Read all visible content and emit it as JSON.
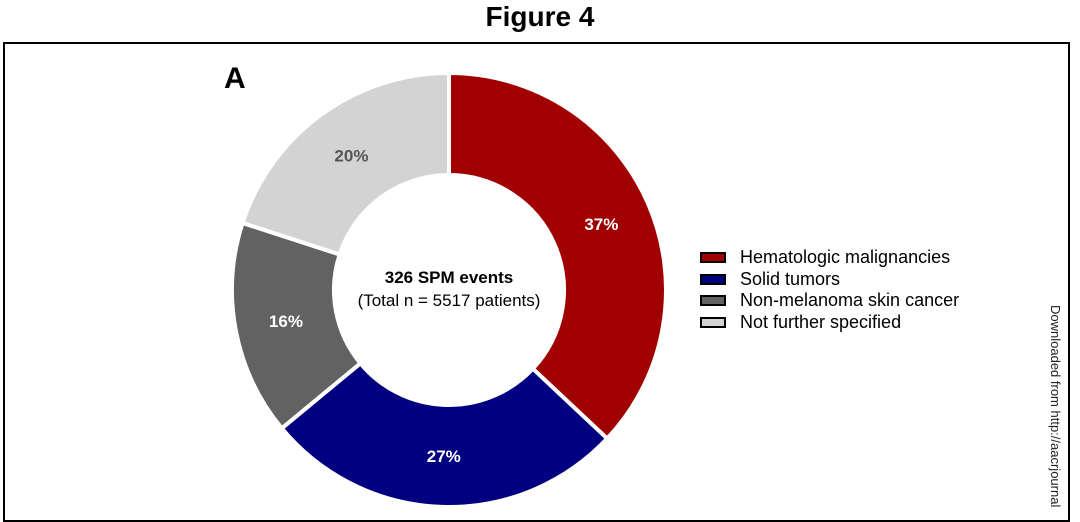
{
  "title": "Figure 4",
  "panel_label": "A",
  "side_note": "Downloaded from http://aacrjournal",
  "chart_data": {
    "type": "pie",
    "donut": true,
    "center_text": {
      "line1": "326 SPM events",
      "line2": "(Total n = 5517 patients)"
    },
    "categories": [
      "Hematologic malignancies",
      "Solid tumors",
      "Non-melanoma skin cancer",
      "Not further specified"
    ],
    "values": [
      37,
      27,
      16,
      20
    ],
    "labels": [
      "37%",
      "27%",
      "16%",
      "20%"
    ],
    "colors": [
      "#a00000",
      "#000080",
      "#626262",
      "#d3d3d3"
    ],
    "label_colors": [
      "#ffffff",
      "#ffffff",
      "#ffffff",
      "#555555"
    ],
    "start": "top",
    "direction": "clockwise",
    "legend_position": "right"
  }
}
